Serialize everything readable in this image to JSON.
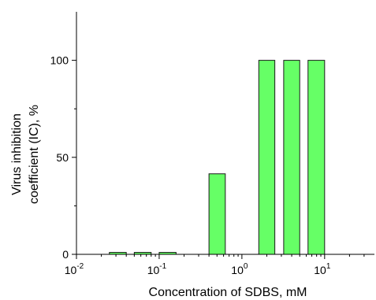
{
  "chart_data": {
    "type": "bar",
    "x_scale": "log",
    "xlim": [
      0.01,
      40
    ],
    "ylim": [
      0,
      125
    ],
    "xlabel": "Concentration of SDBS, mM",
    "ylabel_line1": "Virus inhibition",
    "ylabel_line2": "coefficient (IC), %",
    "x_ticks": [
      {
        "value": 0.01,
        "base": "10",
        "exp": "-2"
      },
      {
        "value": 0.1,
        "base": "10",
        "exp": "-1"
      },
      {
        "value": 1,
        "base": "10",
        "exp": "0"
      },
      {
        "value": 10,
        "base": "10",
        "exp": "1"
      }
    ],
    "y_ticks": [
      0,
      50,
      100
    ],
    "bars": [
      {
        "x_from": 0.025,
        "x_to": 0.04,
        "value": 1
      },
      {
        "x_from": 0.05,
        "x_to": 0.08,
        "value": 1
      },
      {
        "x_from": 0.1,
        "x_to": 0.16,
        "value": 1
      },
      {
        "x_from": 0.4,
        "x_to": 0.63,
        "value": 41.5
      },
      {
        "x_from": 1.6,
        "x_to": 2.5,
        "value": 100
      },
      {
        "x_from": 3.2,
        "x_to": 5.0,
        "value": 100
      },
      {
        "x_from": 6.3,
        "x_to": 10.0,
        "value": 100
      }
    ],
    "bar_color": "#66ff66",
    "grid": false
  }
}
